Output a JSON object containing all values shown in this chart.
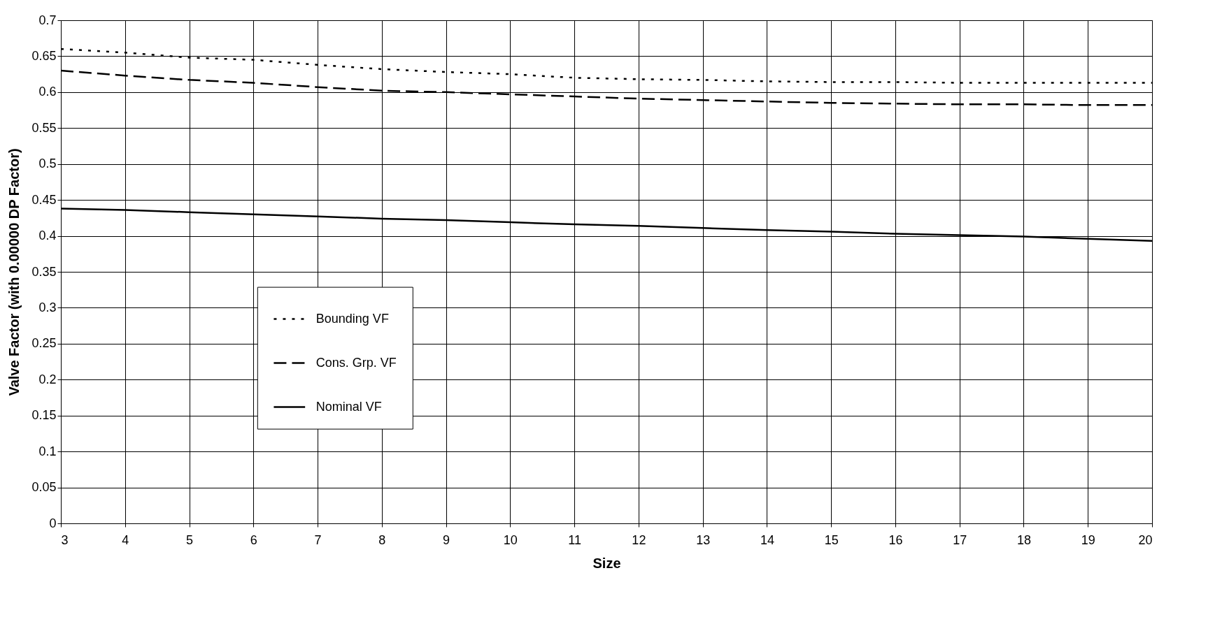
{
  "chart_data": {
    "type": "line",
    "xlabel": "Size",
    "ylabel": "Valve Factor (with 0.00000 DP Factor)",
    "x": [
      3,
      4,
      5,
      6,
      7,
      8,
      9,
      10,
      11,
      12,
      13,
      14,
      15,
      16,
      17,
      18,
      19,
      20
    ],
    "series": [
      {
        "name": "Bounding VF",
        "color": "#000000",
        "line_style": "dotted",
        "values": [
          0.66,
          0.655,
          0.648,
          0.645,
          0.638,
          0.632,
          0.628,
          0.625,
          0.62,
          0.618,
          0.617,
          0.615,
          0.614,
          0.614,
          0.613,
          0.613,
          0.613,
          0.613
        ]
      },
      {
        "name": "Cons. Grp. VF",
        "color": "#000000",
        "line_style": "dashed",
        "values": [
          0.63,
          0.623,
          0.617,
          0.613,
          0.607,
          0.602,
          0.6,
          0.597,
          0.594,
          0.591,
          0.589,
          0.587,
          0.585,
          0.584,
          0.583,
          0.583,
          0.582,
          0.582
        ]
      },
      {
        "name": "Nominal VF",
        "color": "#000000",
        "line_style": "solid",
        "values": [
          0.438,
          0.436,
          0.433,
          0.43,
          0.427,
          0.424,
          0.422,
          0.419,
          0.416,
          0.414,
          0.411,
          0.408,
          0.406,
          0.403,
          0.401,
          0.399,
          0.396,
          0.393
        ]
      }
    ],
    "xlim": [
      3,
      20
    ],
    "xticks": [
      3,
      4,
      5,
      6,
      7,
      8,
      9,
      10,
      11,
      12,
      13,
      14,
      15,
      16,
      17,
      18,
      19,
      20
    ],
    "ylim": [
      0,
      0.7
    ],
    "yticks": [
      0,
      0.05,
      0.1,
      0.15,
      0.2,
      0.25,
      0.3,
      0.35,
      0.4,
      0.45,
      0.5,
      0.55,
      0.6,
      0.65,
      0.7
    ],
    "grid": true,
    "legend": "left"
  }
}
